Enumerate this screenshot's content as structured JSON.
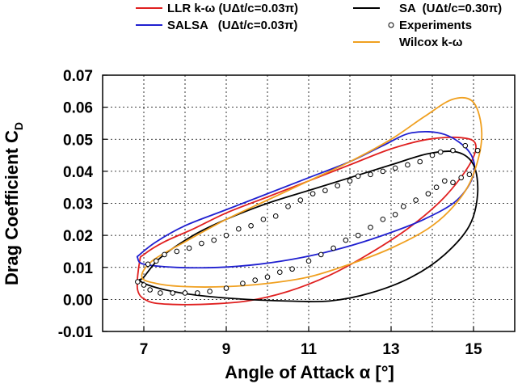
{
  "chart_data": {
    "type": "line",
    "xlabel": "Angle of Attack α [°]",
    "ylabel": "Drag Coefficient C",
    "ylabel_sub": "D",
    "xlim": [
      6.0,
      16.0
    ],
    "ylim": [
      -0.01,
      0.07
    ],
    "grid": true,
    "legend_placement": "top (above plot, two columns)",
    "x_ticks": [
      7,
      9,
      11,
      13,
      15
    ],
    "x_tick_labels": [
      "7",
      "9",
      "11",
      "13",
      "15"
    ],
    "y_ticks": [
      -0.01,
      0.0,
      0.01,
      0.02,
      0.03,
      0.04,
      0.05,
      0.06,
      0.07
    ],
    "y_tick_labels": [
      "-0.01",
      "0.00",
      "0.01",
      "0.02",
      "0.03",
      "0.04",
      "0.05",
      "0.06",
      "0.07"
    ],
    "legend": [
      {
        "label": "LLR k-ω (UΔt/c=0.03π)",
        "kind": "line",
        "color": "#e02020"
      },
      {
        "label": "SALSA   (UΔt/c=0.03π)",
        "kind": "line",
        "color": "#2020d0"
      },
      {
        "label": "SA  (UΔt/c=0.30π)",
        "kind": "line",
        "color": "#000000"
      },
      {
        "label": "Experiments",
        "kind": "marker",
        "color": "#000000"
      },
      {
        "label": "Wilcox k-ω",
        "kind": "line",
        "color": "#f0a020"
      }
    ],
    "series": [
      {
        "name": "LLR k-ω (UΔt/c=0.03π)",
        "color": "#e02020",
        "x": [
          6.9,
          6.85,
          7.1,
          7.6,
          8.5,
          9.5,
          10.5,
          11.5,
          12.5,
          13.5,
          14.3,
          14.9,
          15.05,
          14.7,
          13.9,
          13.0,
          12.0,
          11.0,
          10.0,
          9.0,
          8.2,
          7.5,
          7.0,
          6.9
        ],
        "y": [
          0.012,
          0.003,
          -0.0005,
          -0.0015,
          -0.0015,
          -0.0005,
          0.0025,
          0.0075,
          0.0145,
          0.023,
          0.032,
          0.042,
          0.0485,
          0.0505,
          0.05,
          0.047,
          0.042,
          0.037,
          0.032,
          0.027,
          0.022,
          0.018,
          0.014,
          0.012
        ]
      },
      {
        "name": "SALSA   (UΔt/c=0.03π)",
        "color": "#2020d0",
        "x": [
          6.9,
          7.3,
          8.0,
          9.0,
          10.0,
          11.0,
          12.0,
          12.8,
          13.5,
          14.3,
          14.9,
          15.0,
          14.6,
          13.8,
          12.8,
          11.8,
          10.8,
          9.8,
          8.8,
          7.8,
          7.0,
          6.85,
          6.9
        ],
        "y": [
          0.014,
          0.018,
          0.023,
          0.028,
          0.033,
          0.038,
          0.043,
          0.048,
          0.052,
          0.0515,
          0.046,
          0.039,
          0.031,
          0.025,
          0.02,
          0.016,
          0.013,
          0.011,
          0.01,
          0.01,
          0.011,
          0.013,
          0.014
        ]
      },
      {
        "name": "SA  (UΔt/c=0.30π)",
        "color": "#000000",
        "x": [
          7.0,
          7.4,
          8.2,
          9.0,
          10.0,
          11.0,
          12.0,
          13.0,
          13.9,
          14.6,
          15.0,
          15.1,
          14.9,
          14.3,
          13.5,
          12.5,
          11.5,
          10.5,
          9.5,
          8.5,
          7.7,
          7.1,
          6.9,
          7.0
        ],
        "y": [
          0.007,
          0.013,
          0.02,
          0.025,
          0.03,
          0.034,
          0.038,
          0.042,
          0.0455,
          0.046,
          0.042,
          0.033,
          0.023,
          0.014,
          0.007,
          0.002,
          -0.0005,
          -0.0005,
          0.0,
          0.001,
          0.0025,
          0.0045,
          0.006,
          0.007
        ]
      },
      {
        "name": "Wilcox k-ω",
        "color": "#f0a020",
        "x": [
          6.95,
          7.2,
          8.0,
          9.0,
          10.0,
          11.0,
          12.0,
          13.0,
          13.8,
          14.5,
          15.0,
          15.2,
          15.05,
          14.7,
          14.0,
          13.0,
          12.0,
          11.0,
          10.0,
          9.0,
          8.0,
          7.3,
          6.95
        ],
        "y": [
          0.007,
          0.012,
          0.018,
          0.025,
          0.031,
          0.037,
          0.043,
          0.05,
          0.057,
          0.0625,
          0.0615,
          0.052,
          0.041,
          0.032,
          0.023,
          0.016,
          0.011,
          0.007,
          0.005,
          0.004,
          0.004,
          0.005,
          0.007
        ]
      }
    ],
    "experiments": [
      {
        "x": 6.85,
        "y": 0.0055
      },
      {
        "x": 7.0,
        "y": 0.0045
      },
      {
        "x": 7.15,
        "y": 0.003
      },
      {
        "x": 7.4,
        "y": 0.002
      },
      {
        "x": 7.7,
        "y": 0.002
      },
      {
        "x": 8.0,
        "y": 0.002
      },
      {
        "x": 8.3,
        "y": 0.002
      },
      {
        "x": 8.6,
        "y": 0.0025
      },
      {
        "x": 9.0,
        "y": 0.0035
      },
      {
        "x": 9.4,
        "y": 0.005
      },
      {
        "x": 9.7,
        "y": 0.006
      },
      {
        "x": 10.0,
        "y": 0.007
      },
      {
        "x": 10.3,
        "y": 0.0085
      },
      {
        "x": 10.6,
        "y": 0.0095
      },
      {
        "x": 11.0,
        "y": 0.012
      },
      {
        "x": 11.3,
        "y": 0.014
      },
      {
        "x": 11.6,
        "y": 0.016
      },
      {
        "x": 11.9,
        "y": 0.0185
      },
      {
        "x": 12.2,
        "y": 0.02
      },
      {
        "x": 12.5,
        "y": 0.0225
      },
      {
        "x": 12.8,
        "y": 0.025
      },
      {
        "x": 13.1,
        "y": 0.0265
      },
      {
        "x": 13.3,
        "y": 0.029
      },
      {
        "x": 13.6,
        "y": 0.031
      },
      {
        "x": 13.9,
        "y": 0.033
      },
      {
        "x": 14.1,
        "y": 0.035
      },
      {
        "x": 14.3,
        "y": 0.037
      },
      {
        "x": 14.5,
        "y": 0.0365
      },
      {
        "x": 14.7,
        "y": 0.038
      },
      {
        "x": 14.9,
        "y": 0.039
      },
      {
        "x": 15.1,
        "y": 0.0465
      },
      {
        "x": 14.8,
        "y": 0.048
      },
      {
        "x": 14.5,
        "y": 0.0465
      },
      {
        "x": 14.2,
        "y": 0.046
      },
      {
        "x": 14.0,
        "y": 0.045
      },
      {
        "x": 13.7,
        "y": 0.043
      },
      {
        "x": 13.4,
        "y": 0.042
      },
      {
        "x": 13.1,
        "y": 0.041
      },
      {
        "x": 12.8,
        "y": 0.04
      },
      {
        "x": 12.5,
        "y": 0.039
      },
      {
        "x": 12.2,
        "y": 0.0385
      },
      {
        "x": 12.0,
        "y": 0.037
      },
      {
        "x": 11.7,
        "y": 0.0355
      },
      {
        "x": 11.4,
        "y": 0.034
      },
      {
        "x": 11.1,
        "y": 0.033
      },
      {
        "x": 10.8,
        "y": 0.031
      },
      {
        "x": 10.5,
        "y": 0.029
      },
      {
        "x": 10.2,
        "y": 0.026
      },
      {
        "x": 9.9,
        "y": 0.025
      },
      {
        "x": 9.6,
        "y": 0.023
      },
      {
        "x": 9.3,
        "y": 0.022
      },
      {
        "x": 9.0,
        "y": 0.02
      },
      {
        "x": 8.7,
        "y": 0.0185
      },
      {
        "x": 8.4,
        "y": 0.0175
      },
      {
        "x": 8.1,
        "y": 0.016
      },
      {
        "x": 7.8,
        "y": 0.015
      },
      {
        "x": 7.5,
        "y": 0.014
      },
      {
        "x": 7.3,
        "y": 0.012
      },
      {
        "x": 7.1,
        "y": 0.011
      }
    ]
  }
}
